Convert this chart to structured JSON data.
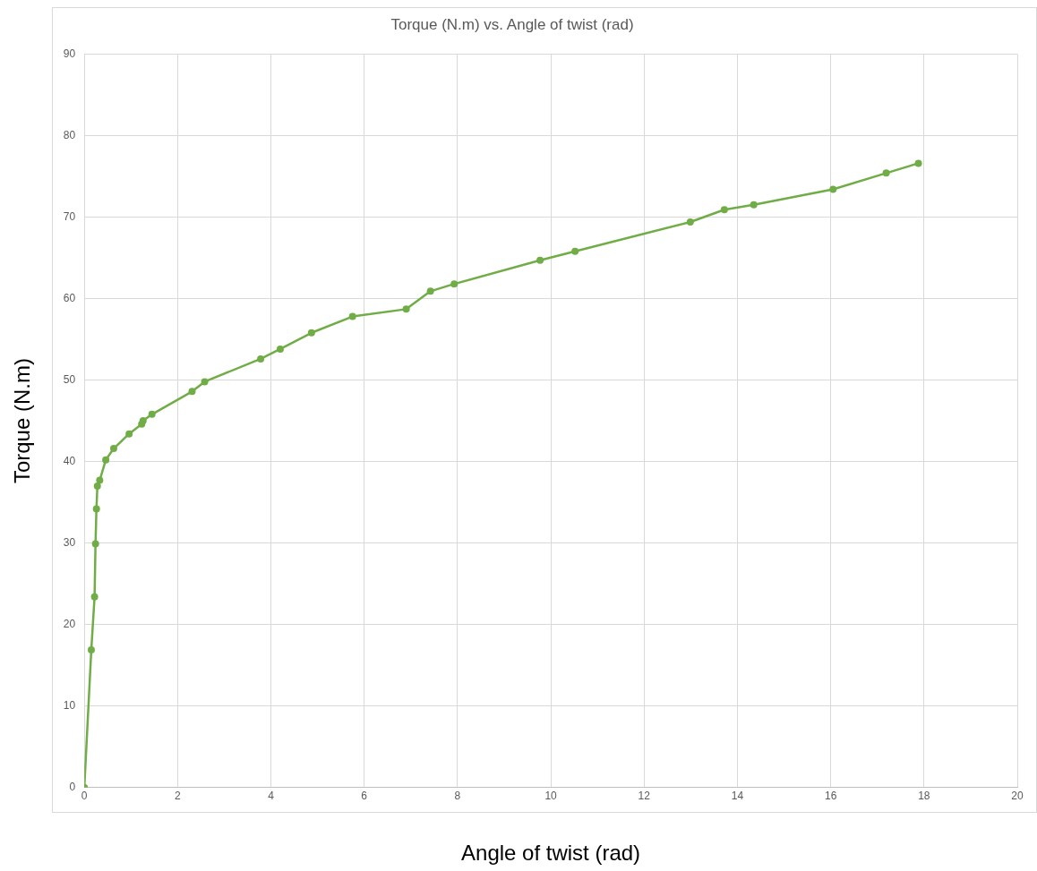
{
  "chart_data": {
    "type": "line",
    "title": "Torque (N.m) vs. Angle of twist (rad)",
    "xlabel": "Angle of twist (rad)",
    "ylabel": "Torque (N.m)",
    "x": [
      0,
      0.15,
      0.22,
      0.24,
      0.26,
      0.28,
      0.33,
      0.46,
      0.63,
      0.96,
      1.23,
      1.26,
      1.45,
      2.31,
      2.58,
      3.78,
      4.2,
      4.87,
      5.75,
      6.9,
      7.42,
      7.93,
      9.77,
      10.52,
      12.99,
      13.72,
      14.35,
      16.05,
      17.19,
      17.88
    ],
    "series": [
      {
        "color": "#70ad47",
        "values": [
          0,
          16.9,
          23.4,
          29.9,
          34.2,
          37.0,
          37.7,
          40.2,
          41.6,
          43.4,
          44.6,
          45.0,
          45.8,
          48.6,
          49.8,
          52.6,
          53.8,
          55.8,
          57.8,
          58.7,
          60.9,
          61.8,
          64.7,
          65.8,
          69.4,
          70.9,
          71.5,
          73.4,
          75.4,
          76.6
        ]
      }
    ],
    "xlim": [
      0,
      20
    ],
    "xticks": [
      0,
      2,
      4,
      6,
      8,
      10,
      12,
      14,
      16,
      18,
      20
    ],
    "ylim": [
      0,
      90
    ],
    "yticks": [
      0,
      10,
      20,
      30,
      40,
      50,
      60,
      70,
      80,
      90
    ],
    "grid": true,
    "legend": false,
    "marker": "circle",
    "line_style": "solid"
  }
}
